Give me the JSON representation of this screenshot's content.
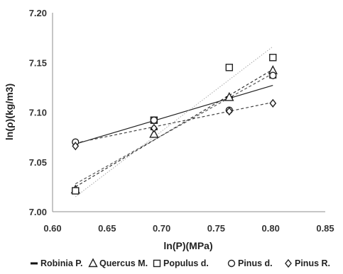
{
  "chart_data": {
    "type": "scatter",
    "xlabel": "ln(P)(MPa)",
    "ylabel": "ln(ρ)(kg/m3)",
    "xlim": [
      0.6,
      0.85
    ],
    "ylim": [
      7.0,
      7.2
    ],
    "xticks": [
      "0.60",
      "0.65",
      "0.70",
      "0.75",
      "0.80",
      "0.85"
    ],
    "yticks": [
      "7.00",
      "7.05",
      "7.10",
      "7.15",
      "7.20"
    ],
    "grid": false,
    "legend_position": "bottom",
    "series": [
      {
        "name": "Robinia P.",
        "marker": "dash",
        "line_style": "solid",
        "line_color": "#222222",
        "x": [
          0.621,
          0.693,
          0.762,
          0.802
        ],
        "y": [
          7.021,
          7.083,
          7.115,
          7.135
        ],
        "trend": [
          [
            0.621,
            7.068
          ],
          [
            0.802,
            7.127
          ]
        ]
      },
      {
        "name": "Quercus M.",
        "marker": "triangle",
        "line_style": "dashed",
        "line_color": "#333333",
        "x": [
          0.621,
          0.693,
          0.762,
          0.802
        ],
        "y": [
          7.022,
          7.078,
          7.115,
          7.142
        ],
        "trend": [
          [
            0.621,
            7.025
          ],
          [
            0.802,
            7.143
          ]
        ]
      },
      {
        "name": "Populus d.",
        "marker": "square",
        "line_style": "dotted",
        "line_color": "#aaaaaa",
        "x": [
          0.621,
          0.693,
          0.762,
          0.802
        ],
        "y": [
          7.021,
          7.092,
          7.145,
          7.155
        ],
        "trend": [
          [
            0.621,
            7.015
          ],
          [
            0.802,
            7.166
          ]
        ]
      },
      {
        "name": "Pinus d.",
        "marker": "circle",
        "line_style": "dashed",
        "line_color": "#555555",
        "x": [
          0.621,
          0.693,
          0.762,
          0.802
        ],
        "y": [
          7.07,
          7.092,
          7.102,
          7.137
        ],
        "trend": [
          [
            0.621,
            7.028
          ],
          [
            0.802,
            7.139
          ]
        ]
      },
      {
        "name": "Pinus R.",
        "marker": "diamond",
        "line_style": "dashed",
        "line_color": "#444444",
        "x": [
          0.621,
          0.693,
          0.762,
          0.802
        ],
        "y": [
          7.066,
          7.084,
          7.101,
          7.109
        ],
        "trend": [
          [
            0.621,
            7.069
          ],
          [
            0.802,
            7.11
          ]
        ]
      }
    ]
  }
}
